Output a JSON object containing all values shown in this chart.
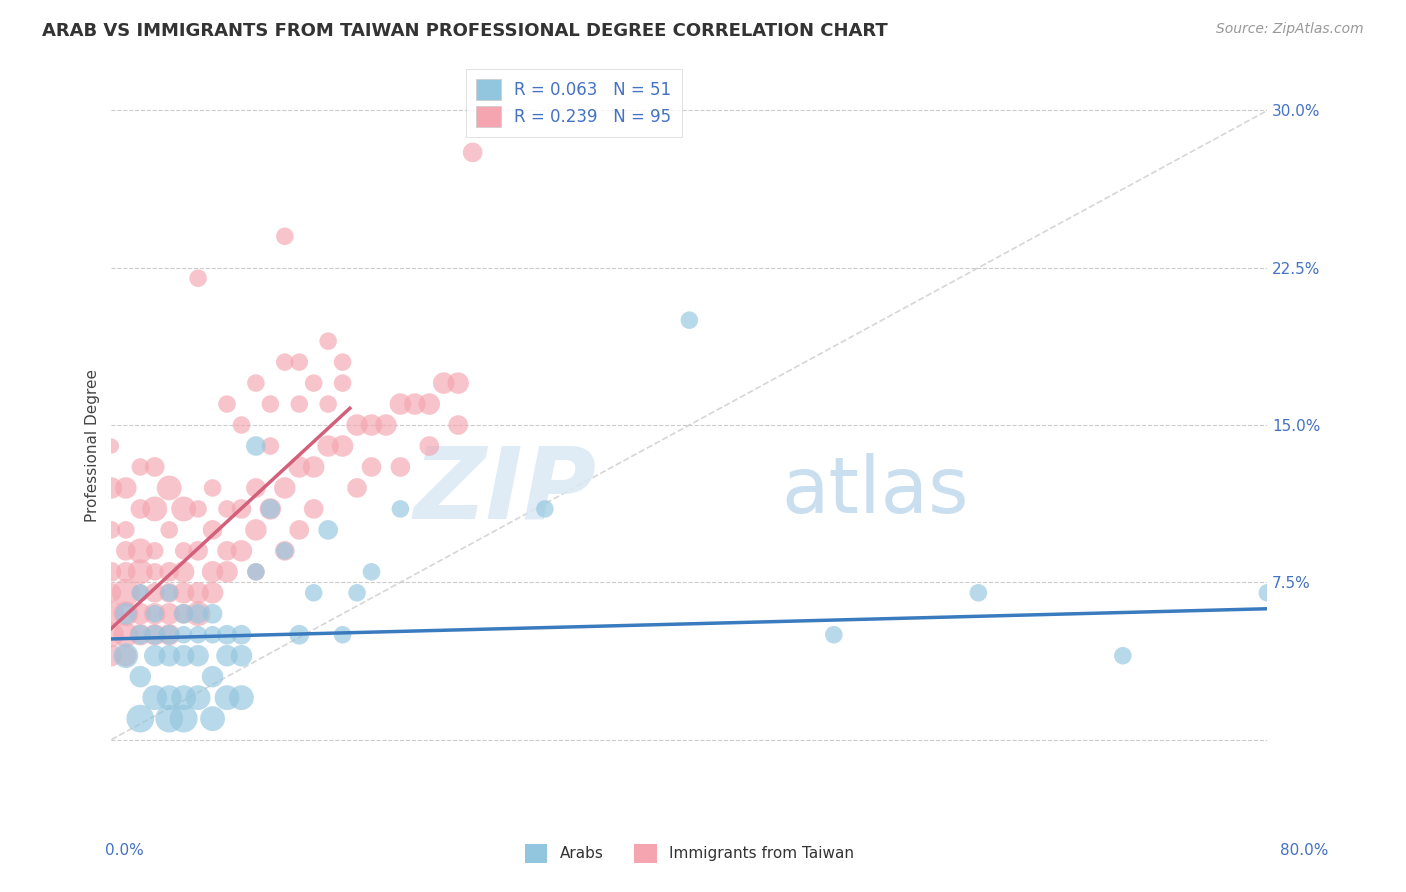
{
  "title": "ARAB VS IMMIGRANTS FROM TAIWAN PROFESSIONAL DEGREE CORRELATION CHART",
  "source": "Source: ZipAtlas.com",
  "ylabel": "Professional Degree",
  "ytick_vals": [
    0.0,
    0.075,
    0.15,
    0.225,
    0.3
  ],
  "xlim": [
    0.0,
    0.8
  ],
  "ylim": [
    -0.04,
    0.32
  ],
  "legend_r1": "R = 0.063   N = 51",
  "legend_r2": "R = 0.239   N = 95",
  "arab_color": "#92c5de",
  "taiwan_color": "#f4a5b0",
  "arab_line_color": "#3a7bbf",
  "taiwan_line_color": "#d45f7a",
  "diagonal_color": "#cccccc",
  "watermark_zip": "ZIP",
  "watermark_atlas": "atlas",
  "background_color": "#ffffff",
  "grid_color": "#cccccc",
  "arab_scatter_x": [
    0.01,
    0.01,
    0.02,
    0.02,
    0.02,
    0.02,
    0.03,
    0.03,
    0.03,
    0.03,
    0.04,
    0.04,
    0.04,
    0.04,
    0.04,
    0.05,
    0.05,
    0.05,
    0.05,
    0.05,
    0.06,
    0.06,
    0.06,
    0.06,
    0.07,
    0.07,
    0.07,
    0.07,
    0.08,
    0.08,
    0.08,
    0.09,
    0.09,
    0.09,
    0.1,
    0.1,
    0.11,
    0.12,
    0.13,
    0.14,
    0.15,
    0.16,
    0.17,
    0.18,
    0.2,
    0.3,
    0.4,
    0.5,
    0.6,
    0.7,
    0.8
  ],
  "arab_scatter_y": [
    0.04,
    0.06,
    0.05,
    0.07,
    0.03,
    0.01,
    0.05,
    0.06,
    0.04,
    0.02,
    0.05,
    0.07,
    0.04,
    0.02,
    0.01,
    0.06,
    0.05,
    0.04,
    0.02,
    0.01,
    0.06,
    0.05,
    0.04,
    0.02,
    0.06,
    0.05,
    0.03,
    0.01,
    0.05,
    0.04,
    0.02,
    0.05,
    0.04,
    0.02,
    0.14,
    0.08,
    0.11,
    0.09,
    0.05,
    0.07,
    0.1,
    0.05,
    0.07,
    0.08,
    0.11,
    0.11,
    0.2,
    0.05,
    0.07,
    0.04,
    0.07
  ],
  "arab_scatter_size": [
    80,
    60,
    50,
    40,
    60,
    100,
    50,
    40,
    60,
    80,
    50,
    40,
    60,
    80,
    100,
    50,
    40,
    60,
    80,
    100,
    50,
    40,
    60,
    80,
    50,
    40,
    60,
    80,
    50,
    60,
    80,
    50,
    60,
    80,
    50,
    40,
    50,
    40,
    50,
    40,
    50,
    40,
    40,
    40,
    40,
    40,
    40,
    40,
    40,
    40,
    40
  ],
  "taiwan_scatter_x": [
    0.0,
    0.0,
    0.0,
    0.0,
    0.0,
    0.0,
    0.0,
    0.0,
    0.01,
    0.01,
    0.01,
    0.01,
    0.01,
    0.01,
    0.01,
    0.01,
    0.02,
    0.02,
    0.02,
    0.02,
    0.02,
    0.02,
    0.02,
    0.03,
    0.03,
    0.03,
    0.03,
    0.03,
    0.03,
    0.03,
    0.04,
    0.04,
    0.04,
    0.04,
    0.04,
    0.04,
    0.05,
    0.05,
    0.05,
    0.05,
    0.05,
    0.06,
    0.06,
    0.06,
    0.06,
    0.07,
    0.07,
    0.07,
    0.07,
    0.08,
    0.08,
    0.08,
    0.09,
    0.09,
    0.1,
    0.1,
    0.1,
    0.11,
    0.12,
    0.12,
    0.13,
    0.13,
    0.14,
    0.14,
    0.15,
    0.16,
    0.17,
    0.17,
    0.18,
    0.18,
    0.19,
    0.2,
    0.2,
    0.21,
    0.22,
    0.22,
    0.23,
    0.24,
    0.24,
    0.25,
    0.06,
    0.08,
    0.09,
    0.1,
    0.11,
    0.11,
    0.12,
    0.12,
    0.13,
    0.13,
    0.14,
    0.15,
    0.15,
    0.16,
    0.16
  ],
  "taiwan_scatter_y": [
    0.04,
    0.06,
    0.08,
    0.1,
    0.12,
    0.14,
    0.05,
    0.07,
    0.04,
    0.06,
    0.08,
    0.1,
    0.12,
    0.05,
    0.07,
    0.09,
    0.05,
    0.07,
    0.09,
    0.11,
    0.13,
    0.06,
    0.08,
    0.05,
    0.07,
    0.09,
    0.11,
    0.13,
    0.06,
    0.08,
    0.06,
    0.08,
    0.1,
    0.12,
    0.05,
    0.07,
    0.07,
    0.09,
    0.11,
    0.06,
    0.08,
    0.07,
    0.09,
    0.11,
    0.06,
    0.08,
    0.1,
    0.12,
    0.07,
    0.09,
    0.11,
    0.08,
    0.09,
    0.11,
    0.1,
    0.12,
    0.08,
    0.11,
    0.12,
    0.09,
    0.13,
    0.1,
    0.13,
    0.11,
    0.14,
    0.14,
    0.15,
    0.12,
    0.15,
    0.13,
    0.15,
    0.16,
    0.13,
    0.16,
    0.16,
    0.14,
    0.17,
    0.17,
    0.15,
    0.28,
    0.22,
    0.16,
    0.15,
    0.17,
    0.14,
    0.16,
    0.24,
    0.18,
    0.16,
    0.18,
    0.17,
    0.19,
    0.16,
    0.18,
    0.17
  ],
  "taiwan_scatter_size": [
    60,
    80,
    50,
    40,
    60,
    30,
    80,
    50,
    60,
    80,
    50,
    40,
    60,
    80,
    100,
    50,
    60,
    40,
    80,
    50,
    40,
    60,
    80,
    60,
    50,
    40,
    80,
    50,
    60,
    40,
    60,
    50,
    40,
    80,
    60,
    50,
    60,
    40,
    80,
    50,
    60,
    60,
    50,
    40,
    80,
    60,
    50,
    40,
    60,
    50,
    40,
    60,
    60,
    50,
    60,
    50,
    40,
    60,
    60,
    50,
    60,
    50,
    60,
    50,
    60,
    60,
    60,
    50,
    60,
    50,
    60,
    60,
    50,
    60,
    60,
    50,
    60,
    60,
    50,
    50,
    40,
    40,
    40,
    40,
    40,
    40,
    40,
    40,
    40,
    40,
    40,
    40,
    40,
    40,
    40
  ]
}
